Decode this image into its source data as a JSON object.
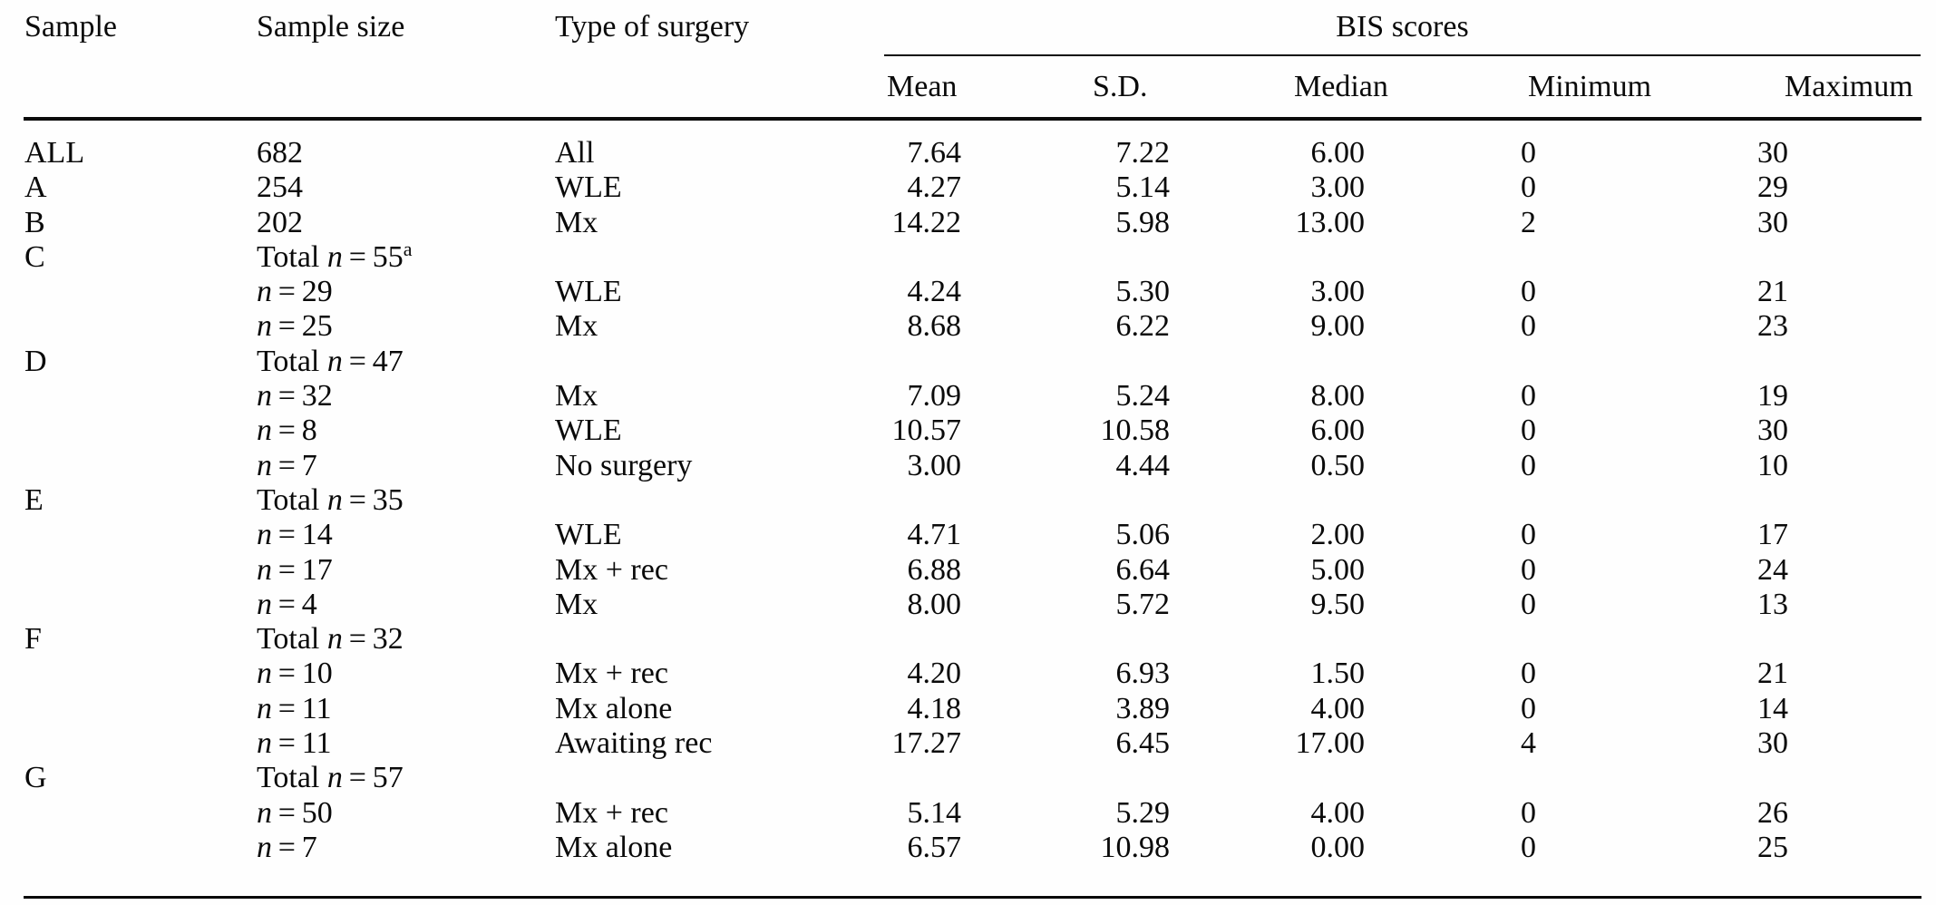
{
  "table": {
    "header": {
      "sample": "Sample",
      "sample_size": "Sample size",
      "surgery": "Type of surgery",
      "bis_group": "BIS scores",
      "mean": "Mean",
      "sd": "S.D.",
      "median": "Median",
      "min": "Minimum",
      "max": "Maximum"
    },
    "size_notation": {
      "n_symbol": "n",
      "equals": "="
    },
    "rows": [
      {
        "sample": "ALL",
        "size": {
          "prefix": "",
          "italic_n": false,
          "value": "682",
          "sup": ""
        },
        "surgery": "All",
        "mean": "7.64",
        "sd": "7.22",
        "median": "6.00",
        "min": "0",
        "max": "30"
      },
      {
        "sample": "A",
        "size": {
          "prefix": "",
          "italic_n": false,
          "value": "254",
          "sup": ""
        },
        "surgery": "WLE",
        "mean": "4.27",
        "sd": "5.14",
        "median": "3.00",
        "min": "0",
        "max": "29"
      },
      {
        "sample": "B",
        "size": {
          "prefix": "",
          "italic_n": false,
          "value": "202",
          "sup": ""
        },
        "surgery": "Mx",
        "mean": "14.22",
        "sd": "5.98",
        "median": "13.00",
        "min": "2",
        "max": "30"
      },
      {
        "sample": "C",
        "size": {
          "prefix": "Total",
          "italic_n": true,
          "value": "55",
          "sup": "a"
        },
        "surgery": "",
        "mean": "",
        "sd": "",
        "median": "",
        "min": "",
        "max": ""
      },
      {
        "sample": "",
        "size": {
          "prefix": "",
          "italic_n": true,
          "value": "29",
          "sup": ""
        },
        "surgery": "WLE",
        "mean": "4.24",
        "sd": "5.30",
        "median": "3.00",
        "min": "0",
        "max": "21"
      },
      {
        "sample": "",
        "size": {
          "prefix": "",
          "italic_n": true,
          "value": "25",
          "sup": ""
        },
        "surgery": "Mx",
        "mean": "8.68",
        "sd": "6.22",
        "median": "9.00",
        "min": "0",
        "max": "23"
      },
      {
        "sample": "D",
        "size": {
          "prefix": "Total",
          "italic_n": true,
          "value": "47",
          "sup": ""
        },
        "surgery": "",
        "mean": "",
        "sd": "",
        "median": "",
        "min": "",
        "max": ""
      },
      {
        "sample": "",
        "size": {
          "prefix": "",
          "italic_n": true,
          "value": "32",
          "sup": ""
        },
        "surgery": "Mx",
        "mean": "7.09",
        "sd": "5.24",
        "median": "8.00",
        "min": "0",
        "max": "19"
      },
      {
        "sample": "",
        "size": {
          "prefix": "",
          "italic_n": true,
          "value": "8",
          "sup": ""
        },
        "surgery": "WLE",
        "mean": "10.57",
        "sd": "10.58",
        "median": "6.00",
        "min": "0",
        "max": "30"
      },
      {
        "sample": "",
        "size": {
          "prefix": "",
          "italic_n": true,
          "value": "7",
          "sup": ""
        },
        "surgery": "No surgery",
        "mean": "3.00",
        "sd": "4.44",
        "median": "0.50",
        "min": "0",
        "max": "10"
      },
      {
        "sample": "E",
        "size": {
          "prefix": "Total",
          "italic_n": true,
          "value": "35",
          "sup": ""
        },
        "surgery": "",
        "mean": "",
        "sd": "",
        "median": "",
        "min": "",
        "max": ""
      },
      {
        "sample": "",
        "size": {
          "prefix": "",
          "italic_n": true,
          "value": "14",
          "sup": ""
        },
        "surgery": "WLE",
        "mean": "4.71",
        "sd": "5.06",
        "median": "2.00",
        "min": "0",
        "max": "17"
      },
      {
        "sample": "",
        "size": {
          "prefix": "",
          "italic_n": true,
          "value": "17",
          "sup": ""
        },
        "surgery": "Mx + rec",
        "mean": "6.88",
        "sd": "6.64",
        "median": "5.00",
        "min": "0",
        "max": "24"
      },
      {
        "sample": "",
        "size": {
          "prefix": "",
          "italic_n": true,
          "value": "4",
          "sup": ""
        },
        "surgery": "Mx",
        "mean": "8.00",
        "sd": "5.72",
        "median": "9.50",
        "min": "0",
        "max": "13"
      },
      {
        "sample": "F",
        "size": {
          "prefix": "Total",
          "italic_n": true,
          "value": "32",
          "sup": ""
        },
        "surgery": "",
        "mean": "",
        "sd": "",
        "median": "",
        "min": "",
        "max": ""
      },
      {
        "sample": "",
        "size": {
          "prefix": "",
          "italic_n": true,
          "value": "10",
          "sup": ""
        },
        "surgery": "Mx + rec",
        "mean": "4.20",
        "sd": "6.93",
        "median": "1.50",
        "min": "0",
        "max": "21"
      },
      {
        "sample": "",
        "size": {
          "prefix": "",
          "italic_n": true,
          "value": "11",
          "sup": ""
        },
        "surgery": "Mx alone",
        "mean": "4.18",
        "sd": "3.89",
        "median": "4.00",
        "min": "0",
        "max": "14"
      },
      {
        "sample": "",
        "size": {
          "prefix": "",
          "italic_n": true,
          "value": "11",
          "sup": ""
        },
        "surgery": "Awaiting rec",
        "mean": "17.27",
        "sd": "6.45",
        "median": "17.00",
        "min": "4",
        "max": "30"
      },
      {
        "sample": "G",
        "size": {
          "prefix": "Total",
          "italic_n": true,
          "value": "57",
          "sup": ""
        },
        "surgery": "",
        "mean": "",
        "sd": "",
        "median": "",
        "min": "",
        "max": ""
      },
      {
        "sample": "",
        "size": {
          "prefix": "",
          "italic_n": true,
          "value": "50",
          "sup": ""
        },
        "surgery": "Mx + rec",
        "mean": "5.14",
        "sd": "5.29",
        "median": "4.00",
        "min": "0",
        "max": "26"
      },
      {
        "sample": "",
        "size": {
          "prefix": "",
          "italic_n": true,
          "value": "7",
          "sup": ""
        },
        "surgery": "Mx alone",
        "mean": "6.57",
        "sd": "10.98",
        "median": "0.00",
        "min": "0",
        "max": "25"
      }
    ]
  }
}
